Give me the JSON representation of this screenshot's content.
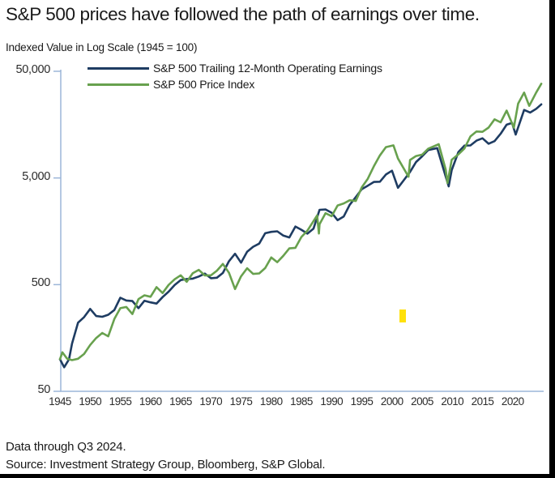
{
  "title": "S&P 500 prices have followed the path of earnings over time.",
  "subtitle": "Indexed Value in Log Scale (1945 = 100)",
  "footnotes": {
    "line1": "Data through Q3 2024.",
    "line2": "Source: Investment Strategy Group, Bloomberg, S&P Global."
  },
  "highlight": {
    "color": "#ffe10a"
  },
  "chart_data": {
    "type": "line",
    "title": "S&P 500 prices have followed the path of earnings over time.",
    "ylabel": "Indexed Value in Log Scale (1945 = 100)",
    "axis_color": "#9cb6d8",
    "legend_position": "top-left-inside",
    "grid": false,
    "y_axis": {
      "scale": "log",
      "range": [
        50,
        50000
      ],
      "ticks": [
        50000,
        5000,
        500,
        50
      ],
      "tick_labels": [
        "50,000",
        "5,000",
        "500",
        "50"
      ]
    },
    "x_axis": {
      "range": [
        1945,
        2025
      ],
      "ticks": [
        1945,
        1950,
        1955,
        1960,
        1965,
        1970,
        1975,
        1980,
        1985,
        1990,
        1995,
        2000,
        2005,
        2010,
        2015,
        2020
      ]
    },
    "series": [
      {
        "name": "S&P 500 Trailing 12-Month Operating Earnings",
        "color": "#1e3c62",
        "points": [
          [
            1945,
            100
          ],
          [
            1945.7,
            84
          ],
          [
            1946.5,
            100
          ],
          [
            1947,
            140
          ],
          [
            1948,
            220
          ],
          [
            1949,
            248
          ],
          [
            1950,
            296
          ],
          [
            1951,
            254
          ],
          [
            1952,
            250
          ],
          [
            1953,
            261
          ],
          [
            1954,
            289
          ],
          [
            1955,
            377
          ],
          [
            1956,
            355
          ],
          [
            1957,
            351
          ],
          [
            1958,
            301
          ],
          [
            1959,
            353
          ],
          [
            1960,
            341
          ],
          [
            1961,
            332
          ],
          [
            1962,
            382
          ],
          [
            1963,
            430
          ],
          [
            1964,
            496
          ],
          [
            1965,
            552
          ],
          [
            1966,
            564
          ],
          [
            1967,
            569
          ],
          [
            1968,
            596
          ],
          [
            1969,
            635
          ],
          [
            1970,
            574
          ],
          [
            1971,
            580
          ],
          [
            1972,
            643
          ],
          [
            1973,
            829
          ],
          [
            1974,
            974
          ],
          [
            1975,
            803
          ],
          [
            1976,
            1016
          ],
          [
            1977,
            1132
          ],
          [
            1978,
            1213
          ],
          [
            1979,
            1516
          ],
          [
            1980,
            1562
          ],
          [
            1981,
            1581
          ],
          [
            1982,
            1440
          ],
          [
            1983,
            1384
          ],
          [
            1984,
            1754
          ],
          [
            1985,
            1633
          ],
          [
            1986,
            1503
          ],
          [
            1987,
            1671
          ],
          [
            1988,
            2513
          ],
          [
            1989,
            2533
          ],
          [
            1990,
            2359
          ],
          [
            1991,
            2010
          ],
          [
            1992,
            2174
          ],
          [
            1993,
            2802
          ],
          [
            1994,
            3307
          ],
          [
            1995,
            3927
          ],
          [
            1996,
            4232
          ],
          [
            1997,
            4584
          ],
          [
            1998,
            4611
          ],
          [
            1999,
            5383
          ],
          [
            2000,
            5847
          ],
          [
            2001,
            4047
          ],
          [
            2002,
            4796
          ],
          [
            2003,
            5699
          ],
          [
            2004,
            7052
          ],
          [
            2005,
            7966
          ],
          [
            2006,
            9140
          ],
          [
            2007.5,
            9534
          ],
          [
            2008.9,
            5159
          ],
          [
            2009.4,
            4170
          ],
          [
            2009.9,
            5925
          ],
          [
            2011,
            8729
          ],
          [
            2012,
            10049
          ],
          [
            2013,
            10089
          ],
          [
            2014,
            11181
          ],
          [
            2015,
            11776
          ],
          [
            2016,
            10467
          ],
          [
            2017,
            11072
          ],
          [
            2018,
            12974
          ],
          [
            2019,
            15797
          ],
          [
            2019.9,
            16372
          ],
          [
            2020.5,
            12751
          ],
          [
            2021.9,
            21696
          ],
          [
            2022.9,
            20522
          ],
          [
            2023.9,
            22250
          ],
          [
            2024.75,
            24487
          ]
        ]
      },
      {
        "name": "S&P 500 Price Index",
        "color": "#68a14e",
        "points": [
          [
            1945,
            100
          ],
          [
            1945.4,
            116
          ],
          [
            1946.2,
            101
          ],
          [
            1947,
            98
          ],
          [
            1948,
            101
          ],
          [
            1949,
            112
          ],
          [
            1950,
            136
          ],
          [
            1951,
            158
          ],
          [
            1952,
            176
          ],
          [
            1953,
            164
          ],
          [
            1954,
            238
          ],
          [
            1955,
            301
          ],
          [
            1956,
            309
          ],
          [
            1957,
            265
          ],
          [
            1958,
            366
          ],
          [
            1959,
            397
          ],
          [
            1960,
            385
          ],
          [
            1961,
            474
          ],
          [
            1962,
            417
          ],
          [
            1963,
            497
          ],
          [
            1964,
            561
          ],
          [
            1965,
            612
          ],
          [
            1966,
            532
          ],
          [
            1967,
            639
          ],
          [
            1968,
            688
          ],
          [
            1969,
            610
          ],
          [
            1970,
            611
          ],
          [
            1971,
            676
          ],
          [
            1972,
            782
          ],
          [
            1973,
            646
          ],
          [
            1974,
            454
          ],
          [
            1975,
            598
          ],
          [
            1976,
            712
          ],
          [
            1977,
            630
          ],
          [
            1978,
            637
          ],
          [
            1979,
            715
          ],
          [
            1980,
            899
          ],
          [
            1981,
            812
          ],
          [
            1982,
            932
          ],
          [
            1983,
            1093
          ],
          [
            1984,
            1107
          ],
          [
            1985,
            1400
          ],
          [
            1986,
            1604
          ],
          [
            1987.6,
            2226
          ],
          [
            1987.9,
            1507
          ],
          [
            1988,
            1840
          ],
          [
            1989,
            2341
          ],
          [
            1990,
            2187
          ],
          [
            1991,
            2763
          ],
          [
            1992,
            2887
          ],
          [
            1993,
            3090
          ],
          [
            1994,
            3043
          ],
          [
            1995,
            4080
          ],
          [
            1996,
            4907
          ],
          [
            1997,
            6429
          ],
          [
            1998,
            8143
          ],
          [
            1999,
            9734
          ],
          [
            2000.25,
            10117
          ],
          [
            2001,
            7606
          ],
          [
            2002.75,
            5141
          ],
          [
            2003,
            7366
          ],
          [
            2004,
            8029
          ],
          [
            2005,
            8270
          ],
          [
            2006,
            9396
          ],
          [
            2007.75,
            10367
          ],
          [
            2008.9,
            5983
          ],
          [
            2009.2,
            4482
          ],
          [
            2009.9,
            7388
          ],
          [
            2011,
            8332
          ],
          [
            2012,
            9448
          ],
          [
            2013,
            12245
          ],
          [
            2014,
            13640
          ],
          [
            2015,
            13540
          ],
          [
            2016,
            14832
          ],
          [
            2017,
            17711
          ],
          [
            2018,
            16607
          ],
          [
            2019,
            21403
          ],
          [
            2020.2,
            14819
          ],
          [
            2020.9,
            24883
          ],
          [
            2021.9,
            31573
          ],
          [
            2022.75,
            23696
          ],
          [
            2023.9,
            31597
          ],
          [
            2024.75,
            38173
          ]
        ]
      }
    ]
  }
}
